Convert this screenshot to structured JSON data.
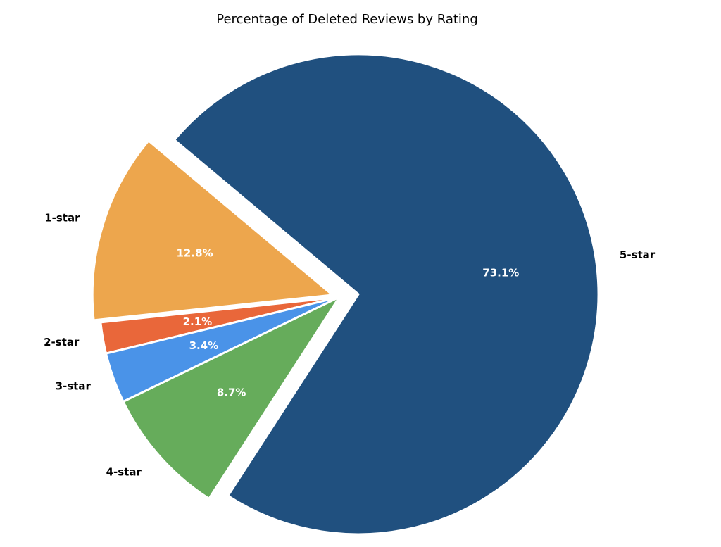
{
  "chart_data": {
    "type": "pie",
    "title": "Percentage of Deleted Reviews by Rating",
    "categories": [
      "1-star",
      "2-star",
      "3-star",
      "4-star",
      "5-star"
    ],
    "values": [
      12.8,
      2.1,
      3.4,
      8.7,
      73.1
    ],
    "value_labels": [
      "12.8%",
      "2.1%",
      "3.4%",
      "8.7%",
      "73.1%"
    ],
    "colors": [
      "#EDA64D",
      "#E9673A",
      "#4A93E8",
      "#66AC5B",
      "#20507F"
    ],
    "explode": [
      0.03,
      0,
      0,
      0,
      0.08
    ],
    "start_angle": 140,
    "direction": "counterclockwise"
  }
}
